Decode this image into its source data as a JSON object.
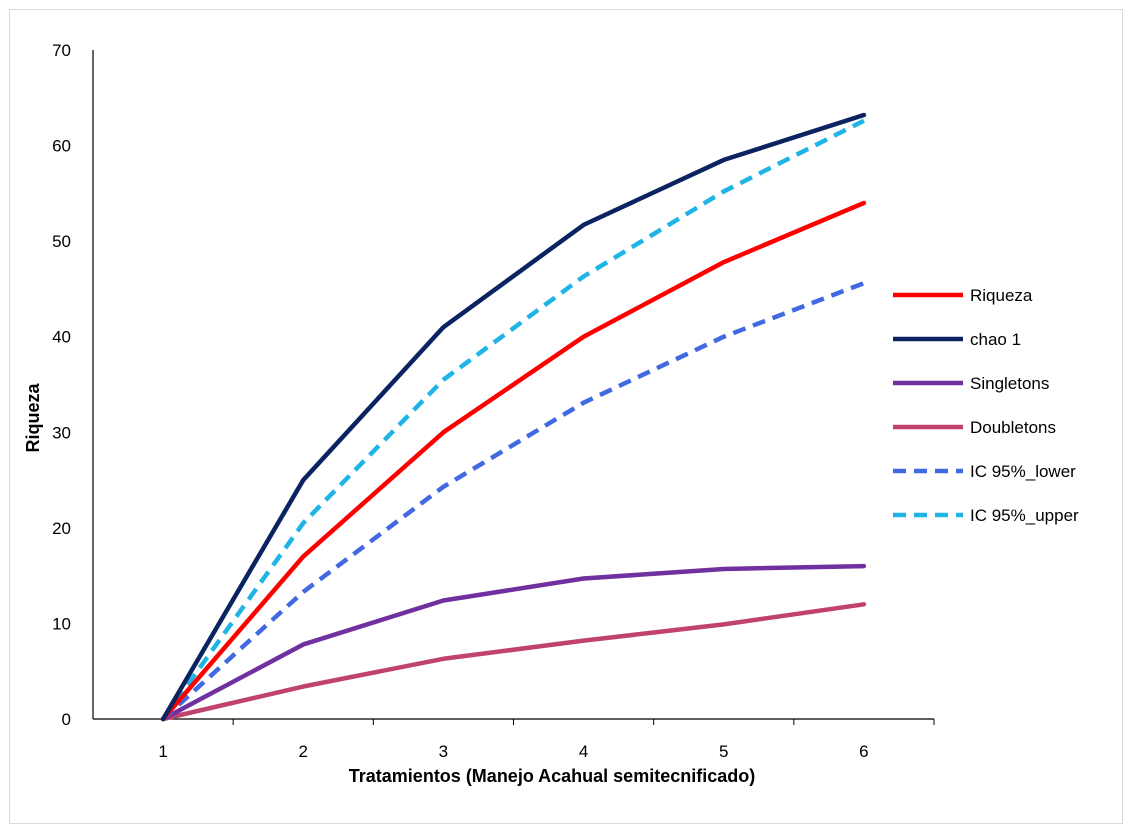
{
  "chart_data": {
    "type": "line",
    "title": "",
    "xlabel": "Tratamientos (Manejo Acahual semitecnificado)",
    "ylabel": "Riqueza",
    "categories": [
      "1",
      "2",
      "3",
      "4",
      "5",
      "6"
    ],
    "ylim": [
      0,
      70
    ],
    "yticks": [
      "0",
      "10",
      "20",
      "30",
      "40",
      "50",
      "60",
      "70"
    ],
    "grid": false,
    "legend_position": "right",
    "series": [
      {
        "name": "Riqueza",
        "values": [
          0,
          17,
          30,
          40,
          47.8,
          54
        ],
        "color": "#ff0000",
        "dash": "solid"
      },
      {
        "name": "chao 1",
        "values": [
          0,
          25,
          41,
          51.7,
          58.5,
          63.2
        ],
        "color": "#0b2461",
        "dash": "solid"
      },
      {
        "name": "Singletons",
        "values": [
          0,
          7.8,
          12.4,
          14.7,
          15.7,
          16
        ],
        "color": "#7030a0",
        "dash": "solid"
      },
      {
        "name": "Doubletons",
        "values": [
          0,
          3.4,
          6.3,
          8.2,
          9.9,
          12
        ],
        "color": "#c0436e",
        "dash": "solid"
      },
      {
        "name": "IC 95%_lower",
        "values": [
          0,
          13.3,
          24.3,
          33.1,
          40,
          45.6
        ],
        "color": "#4169e1",
        "dash": "dashed"
      },
      {
        "name": "IC 95%_upper",
        "values": [
          0,
          20.5,
          35.5,
          46.3,
          55.2,
          62.6
        ],
        "color": "#1eb4e6",
        "dash": "dashed"
      }
    ]
  }
}
